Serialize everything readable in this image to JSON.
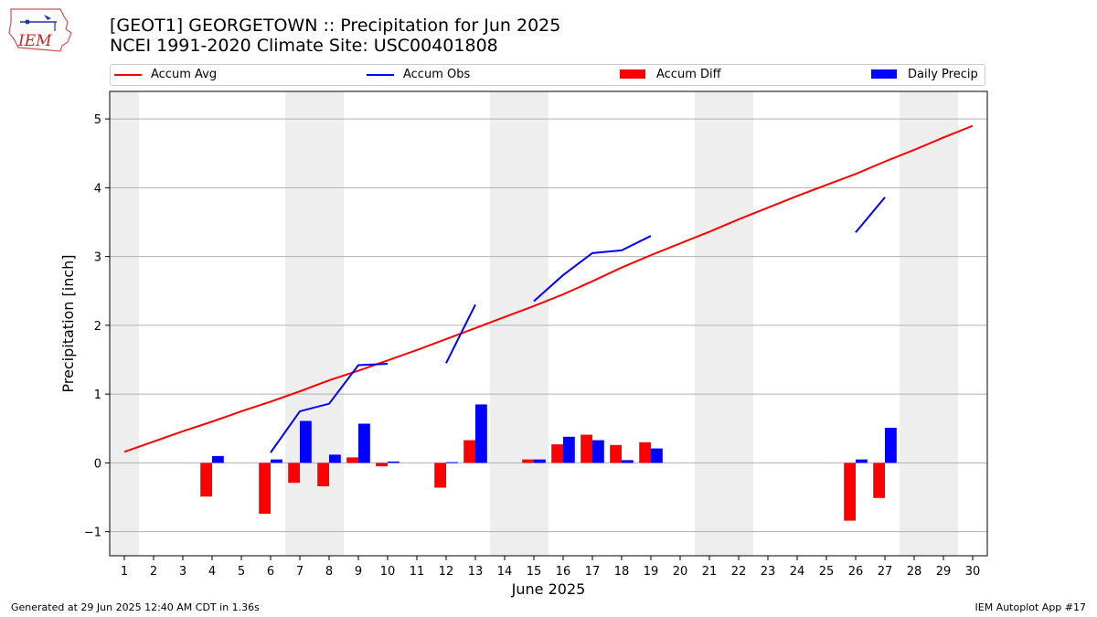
{
  "header": {
    "logo_text": "IEM",
    "title_line1": "[GEOT1] GEORGETOWN :: Precipitation for Jun 2025",
    "title_line2": "NCEI 1991-2020 Climate Site: USC00401808"
  },
  "legend": {
    "accum_avg": "Accum Avg",
    "accum_obs": "Accum Obs",
    "accum_diff": "Accum Diff",
    "daily_precip": "Daily Precip"
  },
  "footer": {
    "generated": "Generated at 29 Jun 2025 12:40 AM CDT in 1.36s",
    "app": "IEM Autoplot App #17"
  },
  "colors": {
    "avg": "#ff0000",
    "obs": "#0000ff",
    "diff": "#ff0000",
    "daily": "#0000ff",
    "weekend_band": "#eeeeee",
    "grid": "#b0b0b0"
  },
  "chart_data": {
    "type": "bar",
    "xlabel": "June 2025",
    "ylabel": "Precipitation [inch]",
    "xlim": [
      0.5,
      30.5
    ],
    "ylim": [
      -1.35,
      5.4
    ],
    "yticks": [
      -1,
      0,
      1,
      2,
      3,
      4,
      5
    ],
    "ytick_labels": [
      "−1",
      "0",
      "1",
      "2",
      "3",
      "4",
      "5"
    ],
    "days": [
      1,
      2,
      3,
      4,
      5,
      6,
      7,
      8,
      9,
      10,
      11,
      12,
      13,
      14,
      15,
      16,
      17,
      18,
      19,
      20,
      21,
      22,
      23,
      24,
      25,
      26,
      27,
      28,
      29,
      30
    ],
    "weekend_bands": [
      [
        0.5,
        1.5
      ],
      [
        6.5,
        8.5
      ],
      [
        13.5,
        15.5
      ],
      [
        20.5,
        22.5
      ],
      [
        27.5,
        29.5
      ]
    ],
    "grid": "horizontal",
    "series": [
      {
        "name": "Accum Avg",
        "kind": "line",
        "values": [
          0.16,
          0.31,
          0.46,
          0.6,
          0.75,
          0.89,
          1.04,
          1.2,
          1.34,
          1.49,
          1.64,
          1.8,
          1.96,
          2.12,
          2.28,
          2.45,
          2.64,
          2.84,
          3.02,
          3.19,
          3.36,
          3.54,
          3.71,
          3.88,
          4.04,
          4.2,
          4.38,
          4.55,
          4.73,
          4.9
        ]
      },
      {
        "name": "Accum Obs",
        "kind": "line",
        "values": [
          null,
          null,
          null,
          null,
          null,
          0.15,
          0.75,
          0.86,
          1.42,
          1.44,
          null,
          1.45,
          2.3,
          null,
          2.35,
          2.73,
          3.05,
          3.09,
          3.3,
          null,
          null,
          null,
          null,
          null,
          null,
          3.35,
          3.86,
          null,
          null,
          null
        ]
      },
      {
        "name": "Accum Diff",
        "kind": "bar",
        "values": [
          null,
          null,
          null,
          -0.49,
          null,
          -0.74,
          -0.29,
          -0.34,
          0.08,
          -0.05,
          null,
          -0.36,
          0.33,
          null,
          0.05,
          0.27,
          0.41,
          0.26,
          0.3,
          null,
          null,
          null,
          null,
          null,
          null,
          -0.84,
          -0.51,
          null,
          null,
          null
        ]
      },
      {
        "name": "Daily Precip",
        "kind": "bar",
        "values": [
          null,
          null,
          null,
          0.1,
          null,
          0.05,
          0.61,
          0.12,
          0.57,
          0.02,
          null,
          0.01,
          0.85,
          null,
          0.05,
          0.38,
          0.33,
          0.04,
          0.21,
          null,
          null,
          null,
          null,
          null,
          null,
          0.05,
          0.51,
          null,
          null,
          null
        ]
      }
    ]
  }
}
